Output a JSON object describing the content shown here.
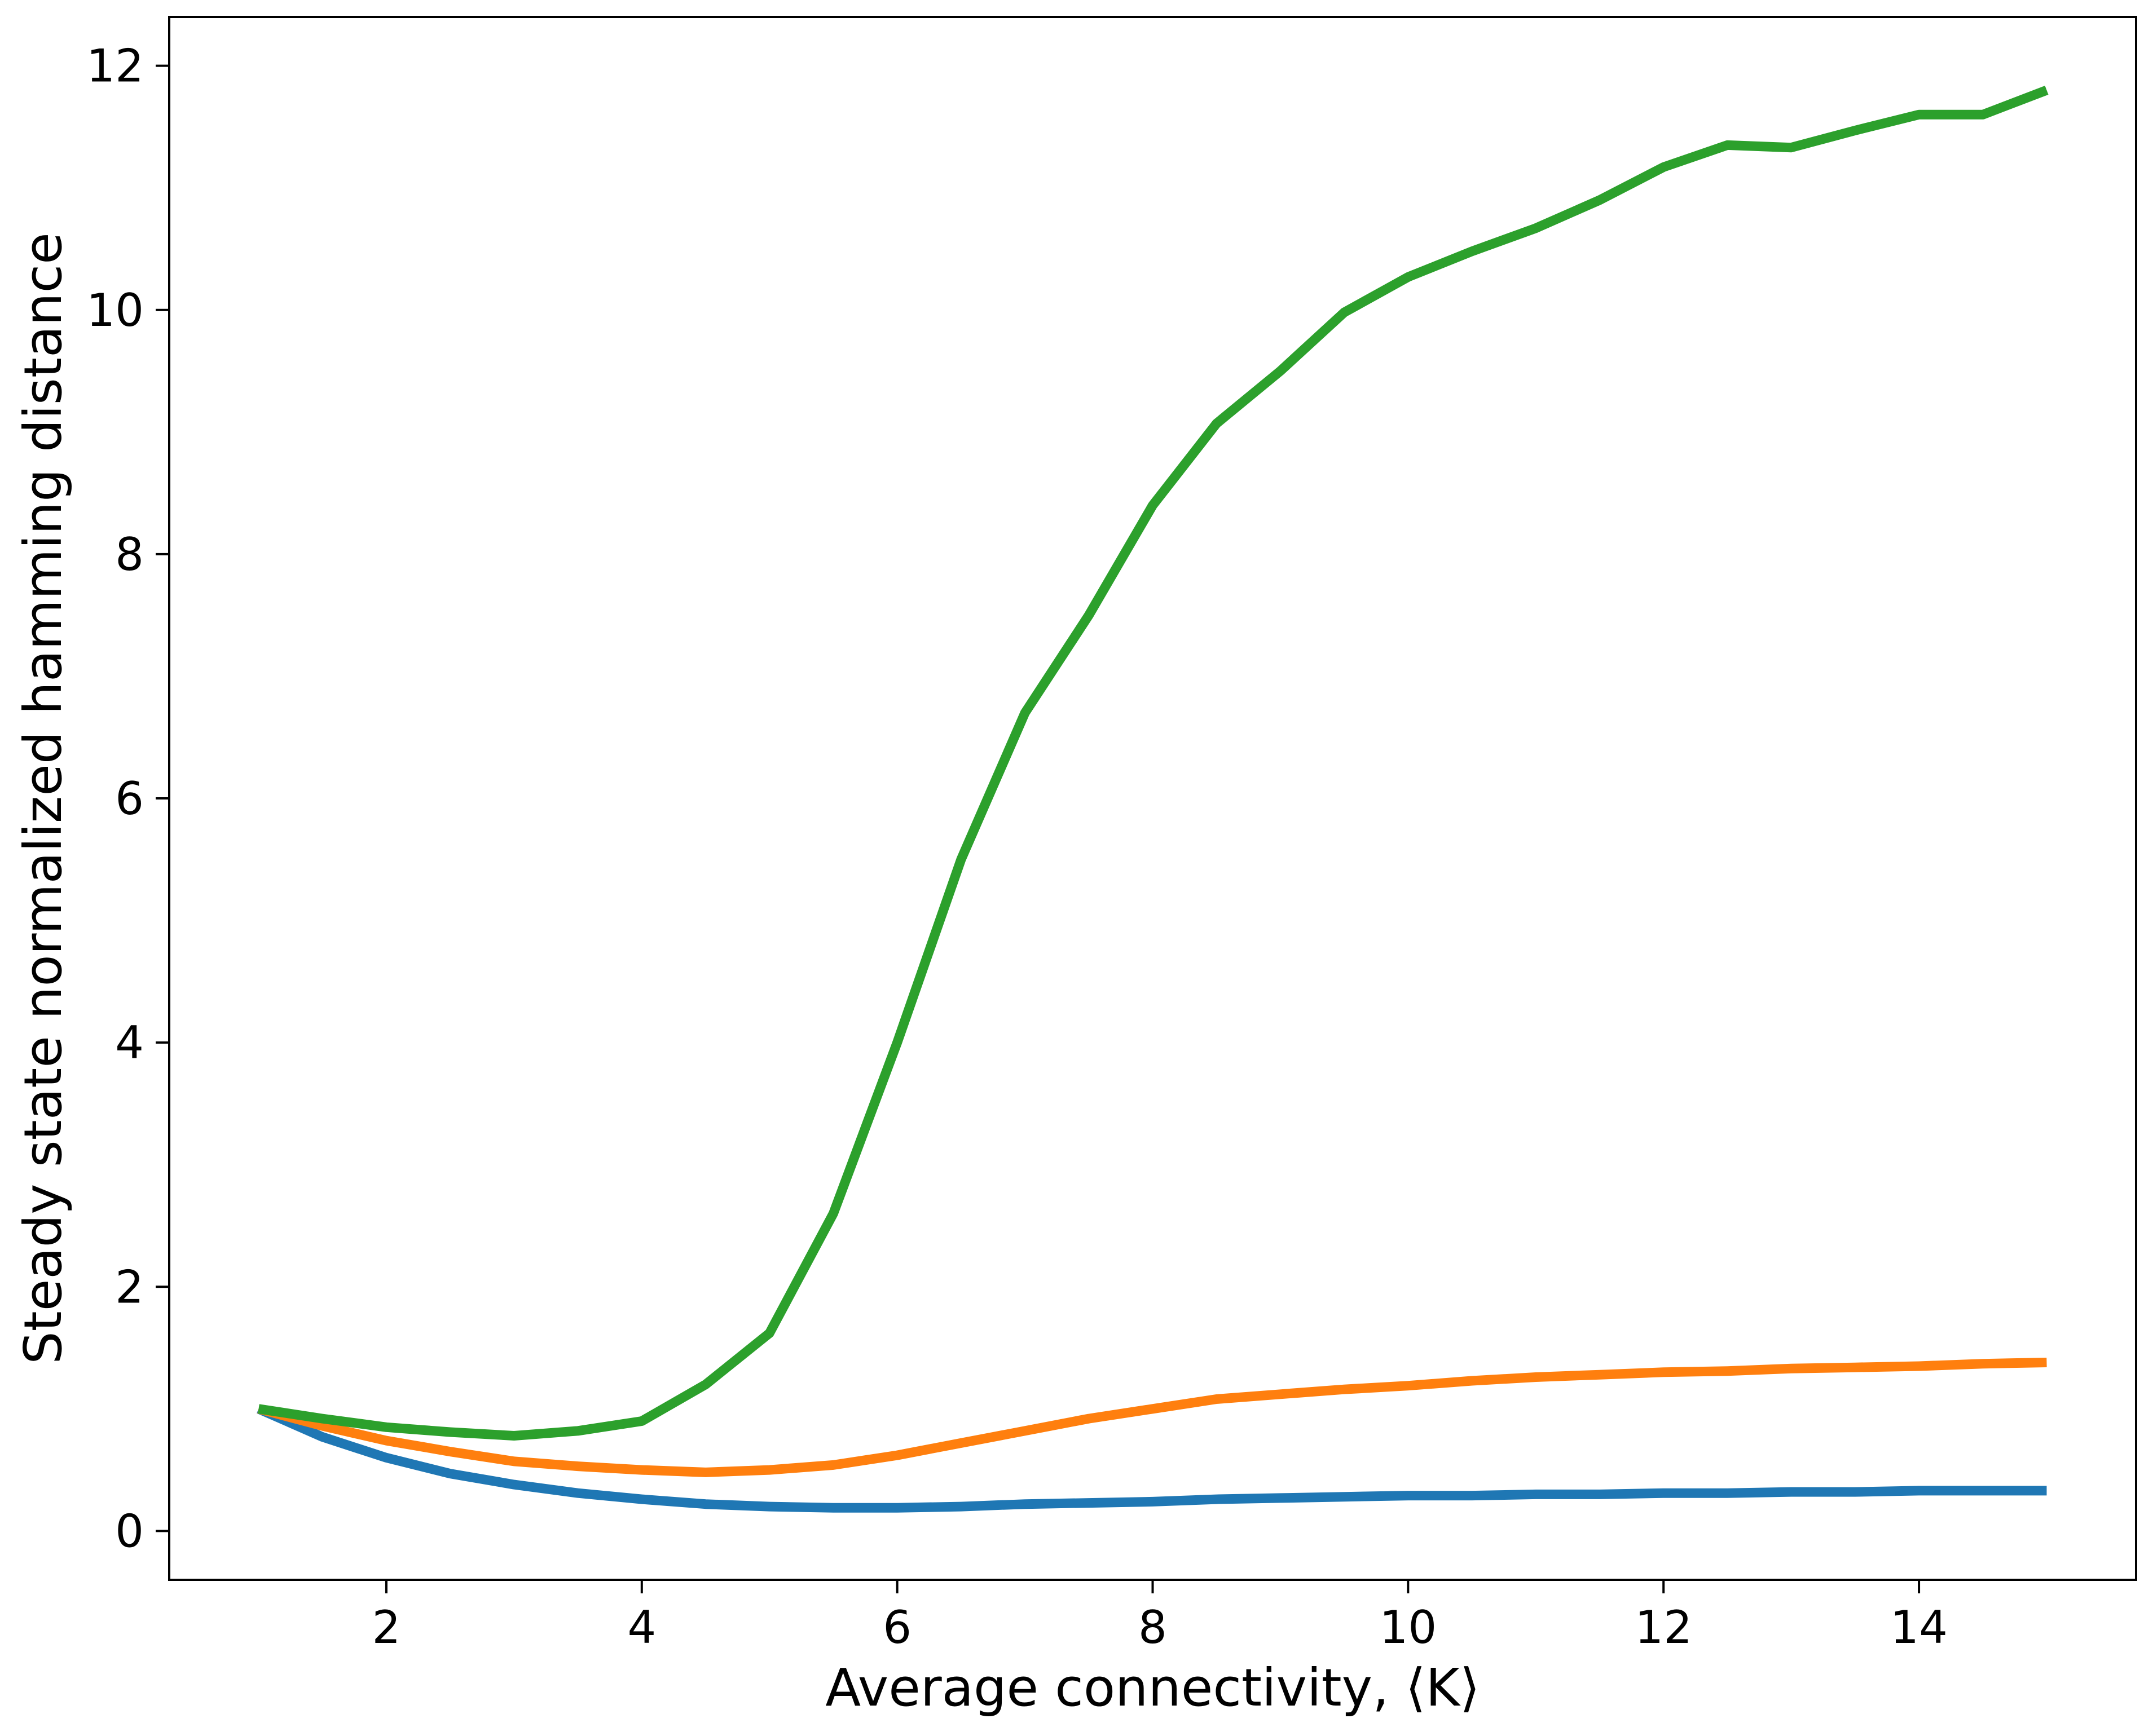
{
  "chart_data": {
    "type": "line",
    "title": "",
    "xlabel": "Average connectivity, ⟨K⟩",
    "ylabel": "Steady state normalized hamming distance",
    "xlim": [
      0.3,
      15.7
    ],
    "ylim": [
      -0.4,
      12.4
    ],
    "xticks": [
      2,
      4,
      6,
      8,
      10,
      12,
      14
    ],
    "yticks": [
      0,
      2,
      4,
      6,
      8,
      10,
      12
    ],
    "grid": false,
    "legend": "none",
    "x": [
      1,
      1.5,
      2,
      2.5,
      3,
      3.5,
      4,
      4.5,
      5,
      5.5,
      6,
      6.5,
      7,
      7.5,
      8,
      8.5,
      9,
      9.5,
      10,
      10.5,
      11,
      11.5,
      12,
      12.5,
      13,
      13.5,
      14,
      14.5,
      15
    ],
    "series": [
      {
        "color": "#1f77b4",
        "values": [
          1.0,
          0.77,
          0.6,
          0.47,
          0.38,
          0.31,
          0.26,
          0.22,
          0.2,
          0.19,
          0.19,
          0.2,
          0.22,
          0.23,
          0.24,
          0.26,
          0.27,
          0.28,
          0.29,
          0.29,
          0.3,
          0.3,
          0.31,
          0.31,
          0.32,
          0.32,
          0.33,
          0.33,
          0.33
        ]
      },
      {
        "color": "#ff7f0e",
        "values": [
          1.0,
          0.86,
          0.74,
          0.65,
          0.57,
          0.53,
          0.5,
          0.48,
          0.5,
          0.54,
          0.62,
          0.72,
          0.82,
          0.92,
          1.0,
          1.08,
          1.12,
          1.16,
          1.19,
          1.23,
          1.26,
          1.28,
          1.3,
          1.31,
          1.33,
          1.34,
          1.35,
          1.37,
          1.38
        ]
      },
      {
        "color": "#2ca02c",
        "values": [
          1.0,
          0.92,
          0.85,
          0.81,
          0.78,
          0.82,
          0.9,
          1.2,
          1.62,
          2.6,
          4.0,
          5.5,
          6.7,
          7.5,
          8.4,
          9.07,
          9.5,
          9.98,
          10.27,
          10.48,
          10.67,
          10.9,
          11.17,
          11.35,
          11.33,
          11.47,
          11.6,
          11.6,
          11.8
        ]
      }
    ]
  }
}
